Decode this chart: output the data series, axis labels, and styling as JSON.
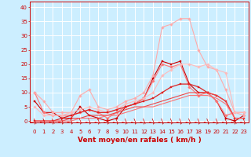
{
  "bg_color": "#cceeff",
  "grid_color": "#aaddcc",
  "xlabel": "Vent moyen/en rafales ( km/h )",
  "xlabel_color": "#cc0000",
  "xlabel_fontsize": 6.5,
  "xticks": [
    0,
    1,
    2,
    3,
    4,
    5,
    6,
    7,
    8,
    9,
    10,
    11,
    12,
    13,
    14,
    15,
    16,
    17,
    18,
    19,
    20,
    21,
    22,
    23
  ],
  "yticks": [
    0,
    5,
    10,
    15,
    20,
    25,
    30,
    35,
    40
  ],
  "ylim": [
    -0.5,
    42
  ],
  "xlim": [
    -0.5,
    23.5
  ],
  "lines": [
    {
      "x": [
        0,
        1,
        2,
        3,
        4,
        5,
        6,
        7,
        8,
        9,
        10,
        11,
        12,
        13,
        14,
        15,
        16,
        17,
        18,
        19,
        20,
        21,
        22,
        23
      ],
      "y": [
        7,
        3,
        3,
        1,
        1,
        5,
        2,
        1,
        0,
        1,
        5,
        6,
        8,
        15,
        21,
        20,
        21,
        13,
        10,
        10,
        7,
        1,
        0,
        2
      ],
      "color": "#cc0000",
      "lw": 0.8,
      "marker": "s",
      "markersize": 1.8,
      "alpha": 1.0
    },
    {
      "x": [
        0,
        1,
        2,
        3,
        4,
        5,
        6,
        7,
        8,
        9,
        10,
        11,
        12,
        13,
        14,
        15,
        16,
        17,
        18,
        19,
        20,
        21,
        22,
        23
      ],
      "y": [
        10,
        3,
        2,
        2,
        2,
        3,
        4,
        3,
        1,
        3,
        5,
        6,
        8,
        14,
        20,
        19,
        20,
        12,
        9,
        10,
        7,
        2,
        3,
        3
      ],
      "color": "#ff7777",
      "lw": 0.8,
      "marker": "D",
      "markersize": 1.8,
      "alpha": 1.0
    },
    {
      "x": [
        0,
        1,
        2,
        3,
        4,
        5,
        6,
        7,
        8,
        9,
        10,
        11,
        12,
        13,
        14,
        15,
        16,
        17,
        18,
        19,
        20,
        21,
        22,
        23
      ],
      "y": [
        10,
        7,
        3,
        3,
        3,
        9,
        11,
        5,
        4,
        5,
        7,
        8,
        10,
        16,
        33,
        34,
        36,
        36,
        25,
        19,
        18,
        11,
        3,
        2
      ],
      "color": "#ffaaaa",
      "lw": 0.8,
      "marker": "D",
      "markersize": 1.8,
      "alpha": 1.0
    },
    {
      "x": [
        0,
        1,
        2,
        3,
        4,
        5,
        6,
        7,
        8,
        9,
        10,
        11,
        12,
        13,
        14,
        15,
        16,
        17,
        18,
        19,
        20,
        21,
        22,
        23
      ],
      "y": [
        5,
        2,
        2,
        2,
        3,
        4,
        5,
        4,
        3,
        4,
        6,
        7,
        8,
        10,
        16,
        18,
        20,
        20,
        19,
        20,
        18,
        17,
        3,
        3
      ],
      "color": "#ffbbbb",
      "lw": 0.8,
      "marker": "D",
      "markersize": 1.8,
      "alpha": 1.0
    },
    {
      "x": [
        0,
        1,
        2,
        3,
        4,
        5,
        6,
        7,
        8,
        9,
        10,
        11,
        12,
        13,
        14,
        15,
        16,
        17,
        18,
        19,
        20,
        21,
        22,
        23
      ],
      "y": [
        0,
        0,
        0,
        1,
        2,
        3,
        4,
        3,
        3,
        4,
        5,
        6,
        7,
        8,
        10,
        12,
        13,
        13,
        12,
        10,
        9,
        7,
        1,
        1
      ],
      "color": "#dd2222",
      "lw": 0.9,
      "marker": "s",
      "markersize": 1.8,
      "alpha": 1.0
    },
    {
      "x": [
        0,
        1,
        2,
        3,
        4,
        5,
        6,
        7,
        8,
        9,
        10,
        11,
        12,
        13,
        14,
        15,
        16,
        17,
        18,
        19,
        20,
        21,
        22,
        23
      ],
      "y": [
        0,
        0,
        0,
        0,
        1,
        1,
        2,
        2,
        2,
        3,
        4,
        5,
        5,
        6,
        7,
        8,
        9,
        10,
        10,
        10,
        9,
        7,
        1,
        1
      ],
      "color": "#ee4444",
      "lw": 0.8,
      "marker": null,
      "markersize": 0,
      "alpha": 1.0
    },
    {
      "x": [
        0,
        1,
        2,
        3,
        4,
        5,
        6,
        7,
        8,
        9,
        10,
        11,
        12,
        13,
        14,
        15,
        16,
        17,
        18,
        19,
        20,
        21,
        22,
        23
      ],
      "y": [
        0,
        0,
        0,
        0,
        0,
        1,
        1,
        1,
        2,
        2,
        3,
        4,
        5,
        5,
        6,
        7,
        8,
        9,
        9,
        9,
        8,
        6,
        1,
        1
      ],
      "color": "#ff6666",
      "lw": 0.8,
      "marker": null,
      "markersize": 0,
      "alpha": 0.9
    }
  ],
  "tick_label_fontsize": 5.0
}
